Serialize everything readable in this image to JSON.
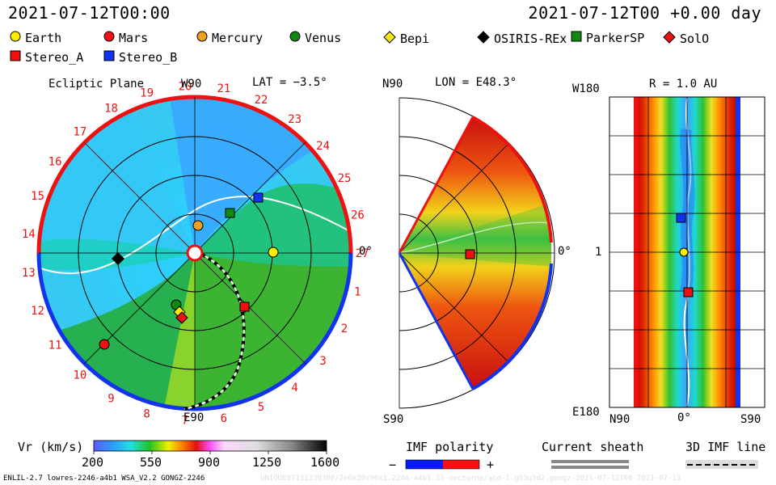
{
  "header": {
    "left_time": "2021-07-12T00:00",
    "right_time": "2021-07-12T00 +0.00 day"
  },
  "legend": [
    {
      "label": "Earth",
      "color": "#ffee00",
      "shape": "circle"
    },
    {
      "label": "Mars",
      "color": "#ee1111",
      "shape": "circle"
    },
    {
      "label": "Mercury",
      "color": "#f0a020",
      "shape": "circle"
    },
    {
      "label": "Venus",
      "color": "#118811",
      "shape": "circle"
    },
    {
      "label": "Bepi",
      "color": "#ffee00",
      "shape": "diamond"
    },
    {
      "label": "OSIRIS-REx",
      "color": "#000000",
      "shape": "diamond"
    },
    {
      "label": "ParkerSP",
      "color": "#118811",
      "shape": "square"
    },
    {
      "label": "SolO",
      "color": "#ee1111",
      "shape": "diamond"
    },
    {
      "label": "Stereo_A",
      "color": "#ee1111",
      "shape": "square"
    },
    {
      "label": "Stereo_B",
      "color": "#1133ee",
      "shape": "square"
    }
  ],
  "ecliptic": {
    "label": "Ecliptic Plane",
    "lat": "LAT = −3.5°",
    "top_label": "W90",
    "bottom_label": "E90",
    "right_label": "0°",
    "carrington_days": [
      "1",
      "2",
      "3",
      "4",
      "5",
      "6",
      "7",
      "8",
      "9",
      "10",
      "11",
      "12",
      "13",
      "14",
      "15",
      "16",
      "17",
      "18",
      "19",
      "20",
      "21",
      "22",
      "23",
      "24",
      "25",
      "26",
      "27"
    ]
  },
  "meridional": {
    "lon": "LON = E48.3°",
    "top_label": "N90",
    "bottom_label": "S90",
    "right_label": "0°"
  },
  "synoptic": {
    "r": "R = 1.0 AU",
    "top_label": "W180",
    "bottom_label": "E180",
    "mid_label": "1",
    "x_left": "N90",
    "x_mid": "0°",
    "x_right": "S90"
  },
  "colorbar": {
    "label": "Vr (km/s)",
    "ticks": [
      "200",
      "550",
      "900",
      "1250",
      "1600"
    ]
  },
  "imf": {
    "title": "IMF polarity",
    "minus": "−",
    "plus": "+",
    "neg_color": "#0a1aff",
    "pos_color": "#ff1010"
  },
  "sheath": {
    "title": "Current sheath"
  },
  "imfline": {
    "title": "3D IMF line"
  },
  "footer": {
    "left": "ENLIL-2.7 lowres-2246-a4b1 WSA_V2.2 GONGZ-2246",
    "right": "UNIQUE07131330300/2e6x30x90x1.2246-a4b1.33-nocturne/acd-1.g53q5d2.gongz-2021-07-12T00    2021-07-13"
  },
  "chart_data": [
    {
      "type": "scatter",
      "title": "Ecliptic Plane",
      "markers": [
        {
          "name": "Earth",
          "value": "Earth marker at 0° (right)"
        },
        {
          "name": "Mercury"
        },
        {
          "name": "Venus"
        },
        {
          "name": "Mars"
        },
        {
          "name": "Bepi"
        },
        {
          "name": "OSIRIS-REx"
        },
        {
          "name": "ParkerSP"
        },
        {
          "name": "SolO"
        },
        {
          "name": "Stereo_A"
        },
        {
          "name": "Stereo_B"
        }
      ]
    },
    {
      "type": "heatmap",
      "title": "LON = E48.3°",
      "markers": [
        {
          "name": "Stereo_A"
        }
      ]
    },
    {
      "type": "heatmap",
      "title": "R = 1.0 AU",
      "markers": [
        {
          "name": "Stereo_B"
        },
        {
          "name": "Earth"
        },
        {
          "name": "Stereo_A"
        }
      ]
    }
  ]
}
